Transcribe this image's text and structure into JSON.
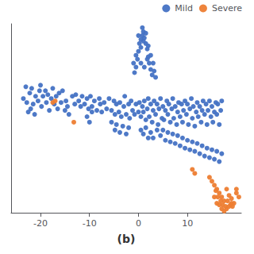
{
  "chart_data": {
    "type": "scatter",
    "xlabel": "(b)",
    "xlim": [
      -26,
      21
    ],
    "ylim": [
      -11,
      13
    ],
    "xticks": [
      -20,
      -10,
      0,
      10
    ],
    "tick_labels": "x",
    "grid": false,
    "legend": "upper right",
    "series": [
      {
        "name": "Mild",
        "color": "#4472C4",
        "values": [
          [
            -23.5,
            3.5
          ],
          [
            -22.8,
            3.0
          ],
          [
            -22.2,
            4.2
          ],
          [
            -21.5,
            2.8
          ],
          [
            -21.0,
            3.8
          ],
          [
            -22.0,
            2.2
          ],
          [
            -21.8,
            4.8
          ],
          [
            -20.5,
            3.2
          ],
          [
            -20.2,
            4.5
          ],
          [
            -19.8,
            2.5
          ],
          [
            -23.0,
            5.0
          ],
          [
            -22.5,
            1.8
          ],
          [
            -20.0,
            5.2
          ],
          [
            -19.5,
            3.8
          ],
          [
            -19.0,
            4.5
          ],
          [
            -21.2,
            1.5
          ],
          [
            -18.8,
            3.0
          ],
          [
            -18.5,
            4.0
          ],
          [
            -18.2,
            2.0
          ],
          [
            -17.8,
            3.5
          ],
          [
            -17.5,
            4.8
          ],
          [
            -17.2,
            2.8
          ],
          [
            -16.8,
            3.8
          ],
          [
            -16.5,
            2.2
          ],
          [
            -16.2,
            4.2
          ],
          [
            -15.8,
            3.0
          ],
          [
            -15.5,
            4.5
          ],
          [
            -14.8,
            3.2
          ],
          [
            -14.5,
            2.5
          ],
          [
            -13.5,
            3.8
          ],
          [
            -13.0,
            2.8
          ],
          [
            -12.8,
            4.0
          ],
          [
            -12.2,
            3.2
          ],
          [
            -11.8,
            2.5
          ],
          [
            -11.5,
            3.8
          ],
          [
            -11.0,
            2.8
          ],
          [
            -10.5,
            3.5
          ],
          [
            -10.2,
            2.2
          ],
          [
            -9.8,
            3.8
          ],
          [
            -9.5,
            2.5
          ],
          [
            -9.0,
            3.2
          ],
          [
            -8.5,
            2.0
          ],
          [
            -8.0,
            3.5
          ],
          [
            -7.8,
            2.8
          ],
          [
            -7.5,
            1.8
          ],
          [
            -7.0,
            3.0
          ],
          [
            -6.5,
            2.2
          ],
          [
            -6.0,
            3.5
          ],
          [
            -5.5,
            2.0
          ],
          [
            -5.0,
            3.2
          ],
          [
            -4.8,
            1.5
          ],
          [
            -4.5,
            2.8
          ],
          [
            -4.0,
            1.8
          ],
          [
            -3.8,
            3.0
          ],
          [
            -3.5,
            1.2
          ],
          [
            -3.0,
            2.5
          ],
          [
            -2.8,
            3.8
          ],
          [
            -2.5,
            1.5
          ],
          [
            -2.0,
            2.8
          ],
          [
            -1.8,
            1.0
          ],
          [
            -1.5,
            3.2
          ],
          [
            -1.2,
            2.0
          ],
          [
            -0.8,
            1.5
          ],
          [
            -0.5,
            2.8
          ],
          [
            0.0,
            1.8
          ],
          [
            0.2,
            3.0
          ],
          [
            0.5,
            1.2
          ],
          [
            0.8,
            2.5
          ],
          [
            1.0,
            1.8
          ],
          [
            1.2,
            3.2
          ],
          [
            1.5,
            0.8
          ],
          [
            1.8,
            2.2
          ],
          [
            2.0,
            3.5
          ],
          [
            2.2,
            1.2
          ],
          [
            2.5,
            2.8
          ],
          [
            2.8,
            0.5
          ],
          [
            3.0,
            2.0
          ],
          [
            3.2,
            3.2
          ],
          [
            3.5,
            1.5
          ],
          [
            3.8,
            2.8
          ],
          [
            4.0,
            0.2
          ],
          [
            4.2,
            2.2
          ],
          [
            4.5,
            3.5
          ],
          [
            4.8,
            1.0
          ],
          [
            5.0,
            2.5
          ],
          [
            5.2,
            0.8
          ],
          [
            5.5,
            2.0
          ],
          [
            5.8,
            3.2
          ],
          [
            6.0,
            1.5
          ],
          [
            6.2,
            2.8
          ],
          [
            6.5,
            0.5
          ],
          [
            6.8,
            2.2
          ],
          [
            7.0,
            3.5
          ],
          [
            7.2,
            1.0
          ],
          [
            7.5,
            2.5
          ],
          [
            7.8,
            0.2
          ],
          [
            8.0,
            1.8
          ],
          [
            8.2,
            3.0
          ],
          [
            8.5,
            1.2
          ],
          [
            8.8,
            2.8
          ],
          [
            9.0,
            0.5
          ],
          [
            9.2,
            2.0
          ],
          [
            9.5,
            3.2
          ],
          [
            9.8,
            1.5
          ],
          [
            10.0,
            2.8
          ],
          [
            10.2,
            0.2
          ],
          [
            10.5,
            2.2
          ],
          [
            10.8,
            3.5
          ],
          [
            11.0,
            1.0
          ],
          [
            11.2,
            2.5
          ],
          [
            11.5,
            0.0
          ],
          [
            11.8,
            1.8
          ],
          [
            12.0,
            3.0
          ],
          [
            12.2,
            1.2
          ],
          [
            12.5,
            2.5
          ],
          [
            12.8,
            0.5
          ],
          [
            13.0,
            2.0
          ],
          [
            13.2,
            3.2
          ],
          [
            13.5,
            1.5
          ],
          [
            13.8,
            2.8
          ],
          [
            14.0,
            0.2
          ],
          [
            14.2,
            2.0
          ],
          [
            14.5,
            3.2
          ],
          [
            14.8,
            1.2
          ],
          [
            15.0,
            2.5
          ],
          [
            15.2,
            0.5
          ],
          [
            15.5,
            1.8
          ],
          [
            15.8,
            3.0
          ],
          [
            16.0,
            1.5
          ],
          [
            16.2,
            2.8
          ],
          [
            16.5,
            0.2
          ],
          [
            16.8,
            2.0
          ],
          [
            17.0,
            3.2
          ],
          [
            -0.5,
            7.5
          ],
          [
            -0.2,
            8.5
          ],
          [
            0.0,
            9.5
          ],
          [
            0.2,
            10.5
          ],
          [
            0.5,
            11.0
          ],
          [
            0.8,
            11.5
          ],
          [
            1.0,
            12.0
          ],
          [
            1.2,
            11.2
          ],
          [
            1.5,
            10.5
          ],
          [
            1.8,
            9.8
          ],
          [
            2.0,
            8.8
          ],
          [
            2.2,
            8.0
          ],
          [
            2.5,
            7.2
          ],
          [
            2.8,
            6.5
          ],
          [
            -0.8,
            6.8
          ],
          [
            -1.0,
            8.0
          ],
          [
            -0.5,
            9.0
          ],
          [
            0.5,
            10.0
          ],
          [
            1.0,
            10.8
          ],
          [
            0.0,
            11.5
          ],
          [
            0.8,
            12.5
          ],
          [
            1.5,
            11.8
          ],
          [
            2.0,
            10.2
          ],
          [
            2.5,
            9.0
          ],
          [
            3.0,
            8.0
          ],
          [
            3.2,
            7.0
          ],
          [
            3.5,
            6.2
          ],
          [
            1.2,
            7.5
          ],
          [
            1.8,
            8.5
          ],
          [
            0.5,
            8.0
          ],
          [
            -10.5,
            1.2
          ],
          [
            -10.0,
            0.5
          ],
          [
            -9.5,
            1.8
          ],
          [
            -15.0,
            2.0
          ],
          [
            -14.2,
            1.5
          ],
          [
            -5.5,
            0.5
          ],
          [
            -4.8,
            -0.5
          ],
          [
            -4.5,
            0.2
          ],
          [
            -3.8,
            -0.8
          ],
          [
            -3.2,
            0.0
          ],
          [
            -2.5,
            -1.0
          ],
          [
            -2.0,
            -0.2
          ],
          [
            0.5,
            -0.5
          ],
          [
            1.0,
            -1.0
          ],
          [
            1.5,
            -0.2
          ],
          [
            2.0,
            -1.5
          ],
          [
            2.5,
            -0.8
          ],
          [
            3.0,
            -1.5
          ],
          [
            3.8,
            -0.5
          ],
          [
            4.5,
            -1.2
          ],
          [
            5.0,
            -0.5
          ],
          [
            5.5,
            -1.8
          ],
          [
            6.0,
            -0.8
          ],
          [
            6.5,
            -2.0
          ],
          [
            7.0,
            -1.0
          ],
          [
            7.5,
            -2.2
          ],
          [
            8.0,
            -1.2
          ],
          [
            8.5,
            -2.5
          ],
          [
            9.0,
            -1.5
          ],
          [
            9.5,
            -2.8
          ],
          [
            10.0,
            -1.8
          ],
          [
            10.5,
            -3.0
          ],
          [
            11.0,
            -2.0
          ],
          [
            11.5,
            -3.2
          ],
          [
            12.0,
            -2.2
          ],
          [
            12.5,
            -3.5
          ],
          [
            13.0,
            -2.5
          ],
          [
            13.5,
            -3.8
          ],
          [
            14.0,
            -2.8
          ],
          [
            14.5,
            -4.0
          ],
          [
            15.0,
            -3.0
          ],
          [
            15.5,
            -4.2
          ],
          [
            16.0,
            -3.2
          ],
          [
            16.5,
            -4.5
          ],
          [
            17.0,
            -3.5
          ]
        ]
      },
      {
        "name": "Severe",
        "color": "#ED7D31",
        "values": [
          [
            -17.5,
            3.0
          ],
          [
            -17.0,
            3.2
          ],
          [
            -13.2,
            0.5
          ],
          [
            11.0,
            -5.5
          ],
          [
            11.5,
            -6.0
          ],
          [
            14.5,
            -6.5
          ],
          [
            15.0,
            -7.0
          ],
          [
            15.5,
            -7.5
          ],
          [
            16.0,
            -8.0
          ],
          [
            16.5,
            -8.5
          ],
          [
            17.0,
            -9.0
          ],
          [
            17.5,
            -9.5
          ],
          [
            18.0,
            -8.0
          ],
          [
            18.5,
            -8.8
          ],
          [
            19.0,
            -9.2
          ],
          [
            19.5,
            -9.8
          ],
          [
            20.0,
            -8.5
          ],
          [
            15.8,
            -8.2
          ],
          [
            16.2,
            -9.0
          ],
          [
            16.8,
            -9.5
          ],
          [
            17.2,
            -10.0
          ],
          [
            17.8,
            -10.2
          ],
          [
            18.2,
            -9.5
          ],
          [
            18.8,
            -10.0
          ],
          [
            19.2,
            -10.2
          ],
          [
            15.5,
            -9.0
          ],
          [
            16.0,
            -9.8
          ],
          [
            16.5,
            -10.0
          ],
          [
            17.0,
            -10.5
          ],
          [
            17.5,
            -10.8
          ],
          [
            18.0,
            -10.5
          ],
          [
            18.5,
            -10.2
          ],
          [
            19.0,
            -9.8
          ],
          [
            20.5,
            -9.0
          ],
          [
            20.0,
            -8.0
          ]
        ]
      }
    ]
  }
}
